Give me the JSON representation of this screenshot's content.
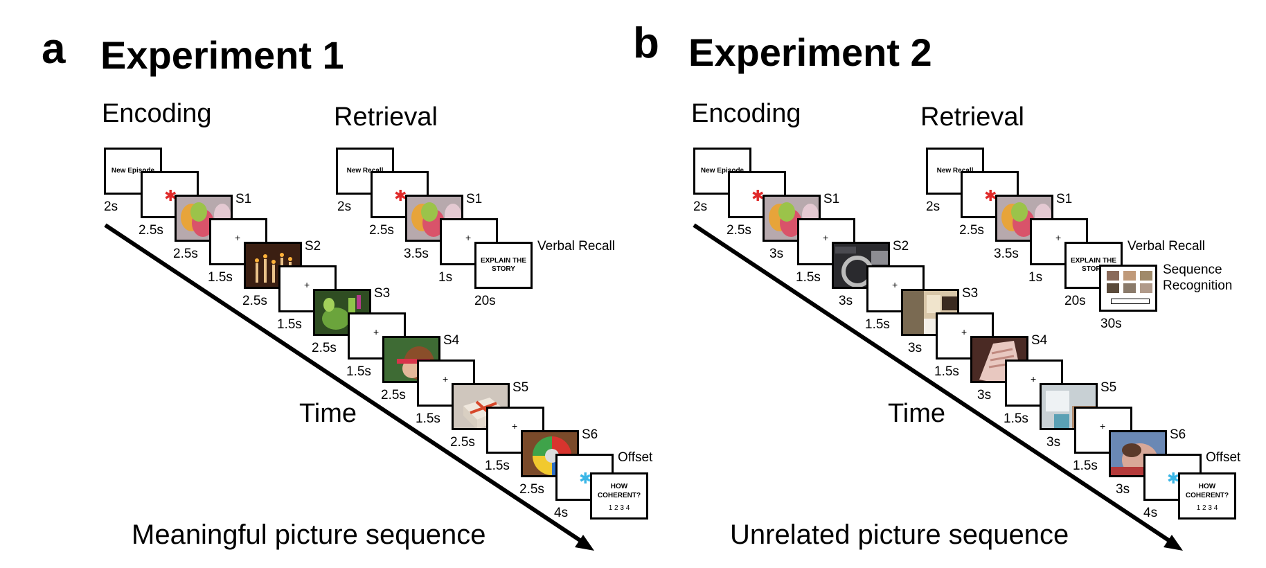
{
  "panel_a": {
    "letter": "a",
    "title": "Experiment 1",
    "encoding_label": "Encoding",
    "retrieval_label": "Retrieval",
    "time_label": "Time",
    "caption": "Meaningful picture sequence",
    "encoding": {
      "new_episode_text": "New Episode",
      "durations": [
        "2s",
        "2.5s",
        "2.5s",
        "1.5s",
        "2.5s",
        "1.5s",
        "2.5s",
        "1.5s",
        "2.5s",
        "1.5s",
        "2.5s",
        "1.5s",
        "2.5s",
        "4s"
      ],
      "stimuli": [
        "S1",
        "S2",
        "S3",
        "S4",
        "S5",
        "S6"
      ],
      "offset_label": "Offset",
      "question_text": "HOW COHERENT?",
      "question_scale": "1 2 3 4"
    },
    "retrieval": {
      "new_recall_text": "New Recall",
      "durations": [
        "2s",
        "2.5s",
        "3.5s",
        "1s",
        "20s"
      ],
      "stimulus": "S1",
      "recall_screen_text": "EXPLAIN THE STORY",
      "recall_label": "Verbal Recall"
    }
  },
  "panel_b": {
    "letter": "b",
    "title": "Experiment 2",
    "encoding_label": "Encoding",
    "retrieval_label": "Retrieval",
    "time_label": "Time",
    "caption": "Unrelated picture sequence",
    "encoding": {
      "new_episode_text": "New Episode",
      "durations": [
        "2s",
        "2.5s",
        "3s",
        "1.5s",
        "3s",
        "1.5s",
        "3s",
        "1.5s",
        "3s",
        "1.5s",
        "3s",
        "1.5s",
        "3s",
        "4s"
      ],
      "stimuli": [
        "S1",
        "S2",
        "S3",
        "S4",
        "S5",
        "S6"
      ],
      "offset_label": "Offset",
      "question_text": "HOW COHERENT?",
      "question_scale": "1 2 3 4"
    },
    "retrieval": {
      "new_recall_text": "New Recall",
      "durations": [
        "2s",
        "2.5s",
        "3.5s",
        "1s",
        "20s",
        "30s"
      ],
      "stimulus": "S1",
      "recall_screen_text": "EXPLAIN THE STORY",
      "recall_label": "Verbal Recall",
      "recognition_label_line1": "Sequence",
      "recognition_label_line2": "Recognition"
    }
  },
  "colors": {
    "cue_star": "#e02a2a",
    "offset_star": "#3ab6e6",
    "axis": "#000000"
  }
}
